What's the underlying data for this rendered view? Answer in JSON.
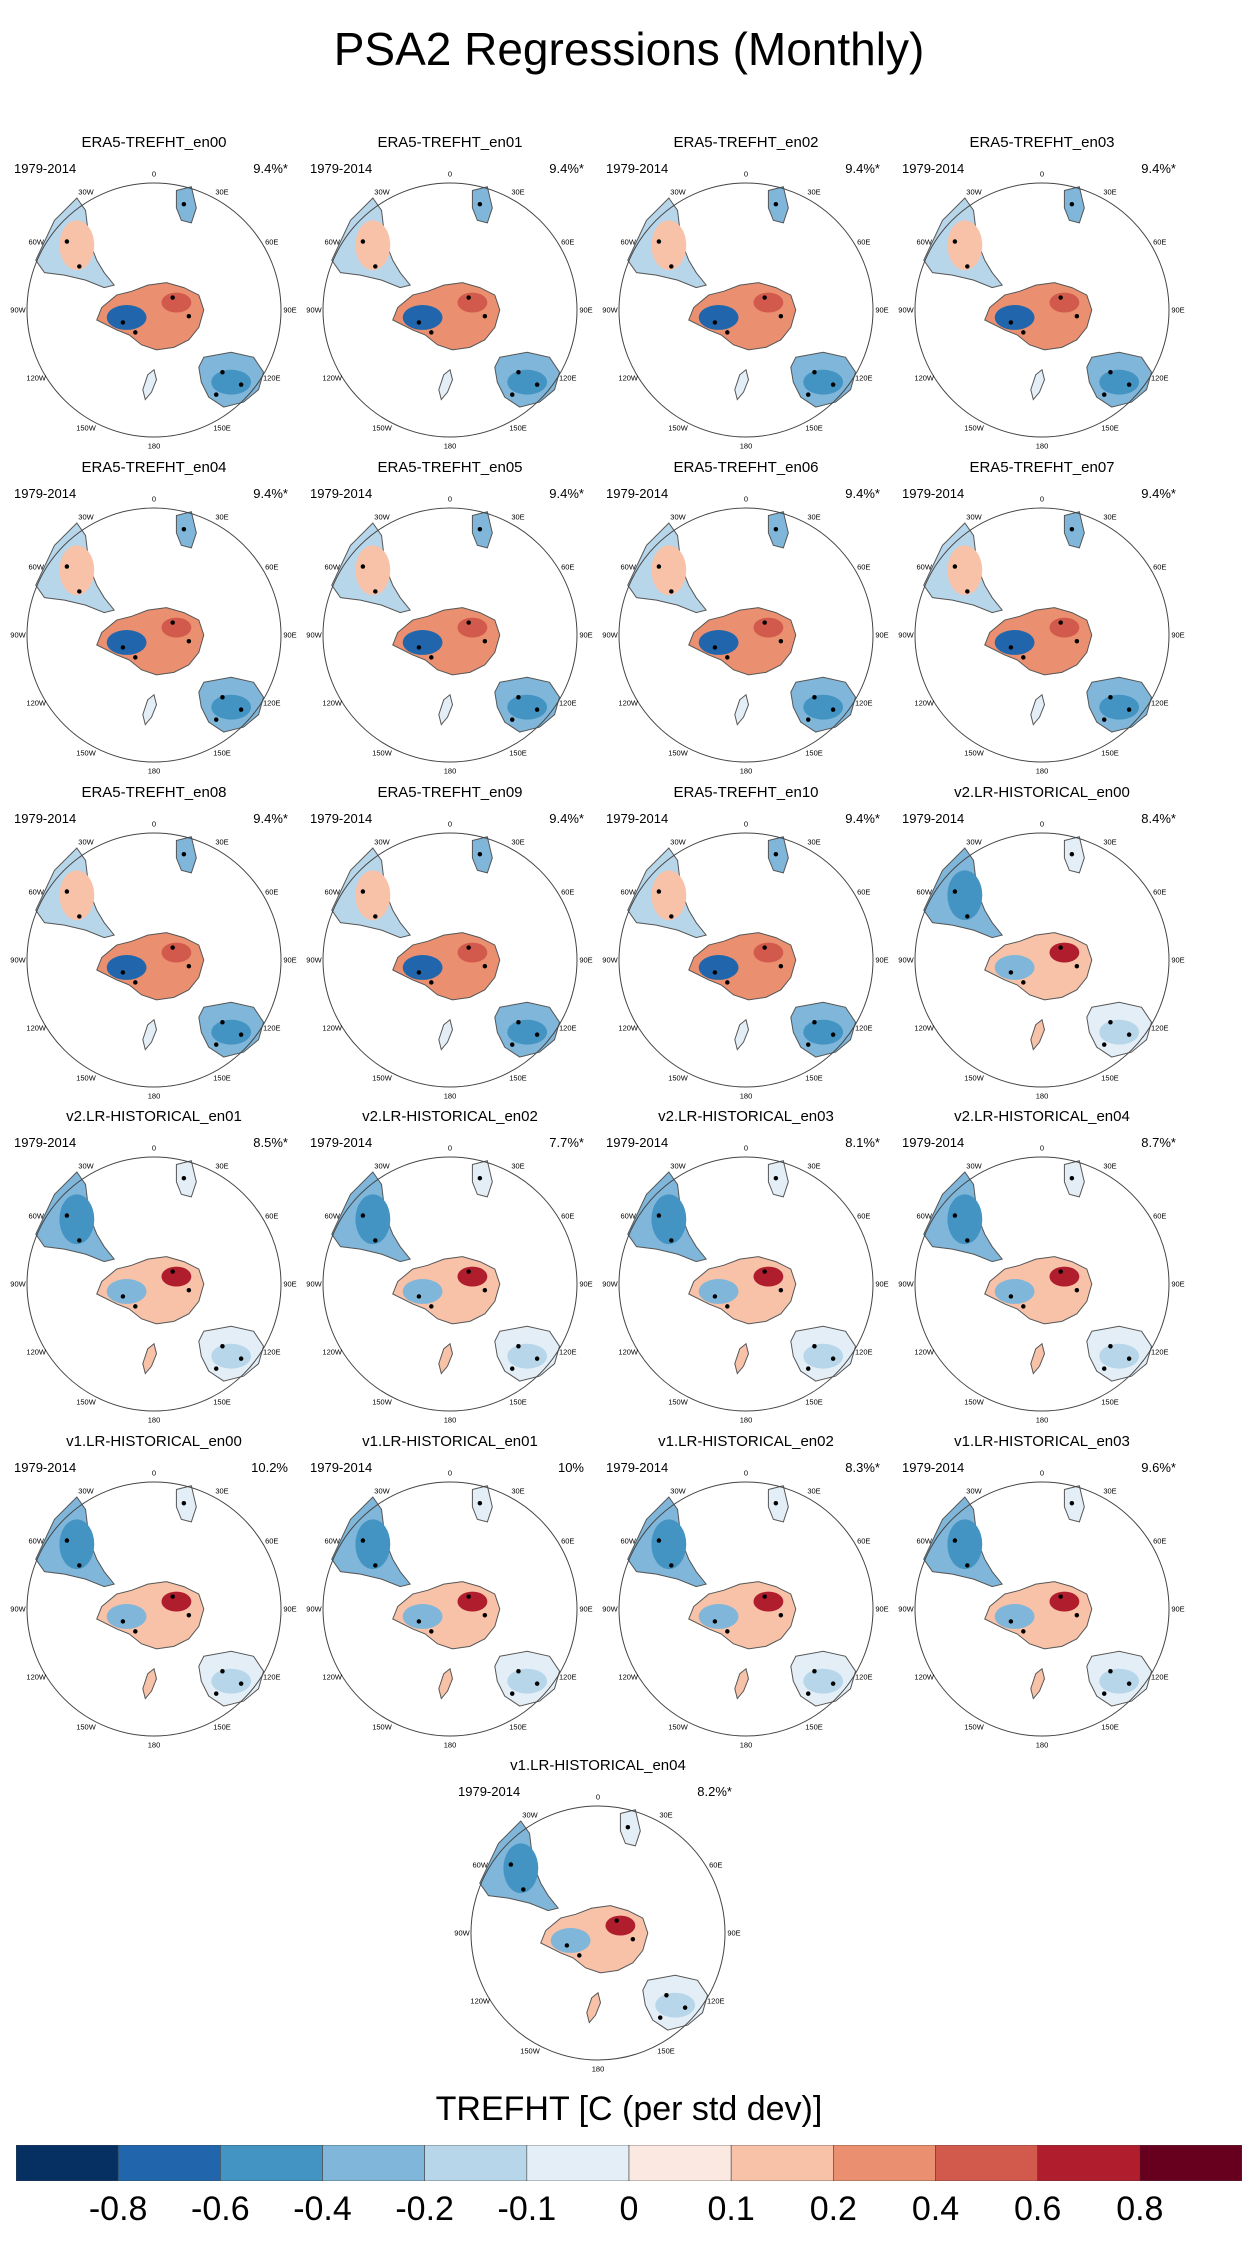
{
  "chart_data": {
    "type": "heatmap",
    "title": "PSA2 Regressions (Monthly)",
    "variable": "TREFHT",
    "colorbar": {
      "title": "TREFHT [C (per std dev)]",
      "ticks": [
        "-0.8",
        "-0.6",
        "-0.4",
        "-0.2",
        "-0.1",
        "0",
        "0.1",
        "0.2",
        "0.4",
        "0.6",
        "0.8"
      ],
      "colors": [
        "#053061",
        "#2166ac",
        "#4393c3",
        "#7fb6d9",
        "#b8d6ea",
        "#e3eef6",
        "#fbe8e1",
        "#f7c2a8",
        "#ea9070",
        "#d25a4c",
        "#b01e2e",
        "#67001f"
      ]
    },
    "longitude_labels": [
      "0",
      "30E",
      "60E",
      "90E",
      "120E",
      "150E",
      "180",
      "150W",
      "120W",
      "90W",
      "60W",
      "30W"
    ],
    "panels": [
      {
        "title": "ERA5-TREFHT_en00",
        "period": "1979-2014",
        "variance": "9.4%*",
        "pattern": "era5"
      },
      {
        "title": "ERA5-TREFHT_en01",
        "period": "1979-2014",
        "variance": "9.4%*",
        "pattern": "era5"
      },
      {
        "title": "ERA5-TREFHT_en02",
        "period": "1979-2014",
        "variance": "9.4%*",
        "pattern": "era5"
      },
      {
        "title": "ERA5-TREFHT_en03",
        "period": "1979-2014",
        "variance": "9.4%*",
        "pattern": "era5"
      },
      {
        "title": "ERA5-TREFHT_en04",
        "period": "1979-2014",
        "variance": "9.4%*",
        "pattern": "era5"
      },
      {
        "title": "ERA5-TREFHT_en05",
        "period": "1979-2014",
        "variance": "9.4%*",
        "pattern": "era5"
      },
      {
        "title": "ERA5-TREFHT_en06",
        "period": "1979-2014",
        "variance": "9.4%*",
        "pattern": "era5"
      },
      {
        "title": "ERA5-TREFHT_en07",
        "period": "1979-2014",
        "variance": "9.4%*",
        "pattern": "era5"
      },
      {
        "title": "ERA5-TREFHT_en08",
        "period": "1979-2014",
        "variance": "9.4%*",
        "pattern": "era5"
      },
      {
        "title": "ERA5-TREFHT_en09",
        "period": "1979-2014",
        "variance": "9.4%*",
        "pattern": "era5"
      },
      {
        "title": "ERA5-TREFHT_en10",
        "period": "1979-2014",
        "variance": "9.4%*",
        "pattern": "era5"
      },
      {
        "title": "v2.LR-HISTORICAL_en00",
        "period": "1979-2014",
        "variance": "8.4%*",
        "pattern": "model"
      },
      {
        "title": "v2.LR-HISTORICAL_en01",
        "period": "1979-2014",
        "variance": "8.5%*",
        "pattern": "model"
      },
      {
        "title": "v2.LR-HISTORICAL_en02",
        "period": "1979-2014",
        "variance": "7.7%*",
        "pattern": "model"
      },
      {
        "title": "v2.LR-HISTORICAL_en03",
        "period": "1979-2014",
        "variance": "8.1%*",
        "pattern": "model"
      },
      {
        "title": "v2.LR-HISTORICAL_en04",
        "period": "1979-2014",
        "variance": "8.7%*",
        "pattern": "model"
      },
      {
        "title": "v1.LR-HISTORICAL_en00",
        "period": "1979-2014",
        "variance": "10.2%",
        "pattern": "model"
      },
      {
        "title": "v1.LR-HISTORICAL_en01",
        "period": "1979-2014",
        "variance": "10%",
        "pattern": "model"
      },
      {
        "title": "v1.LR-HISTORICAL_en02",
        "period": "1979-2014",
        "variance": "8.3%*",
        "pattern": "model"
      },
      {
        "title": "v1.LR-HISTORICAL_en03",
        "period": "1979-2014",
        "variance": "9.6%*",
        "pattern": "model"
      },
      {
        "title": "v1.LR-HISTORICAL_en04",
        "period": "1979-2014",
        "variance": "8.2%*",
        "pattern": "model"
      }
    ]
  }
}
